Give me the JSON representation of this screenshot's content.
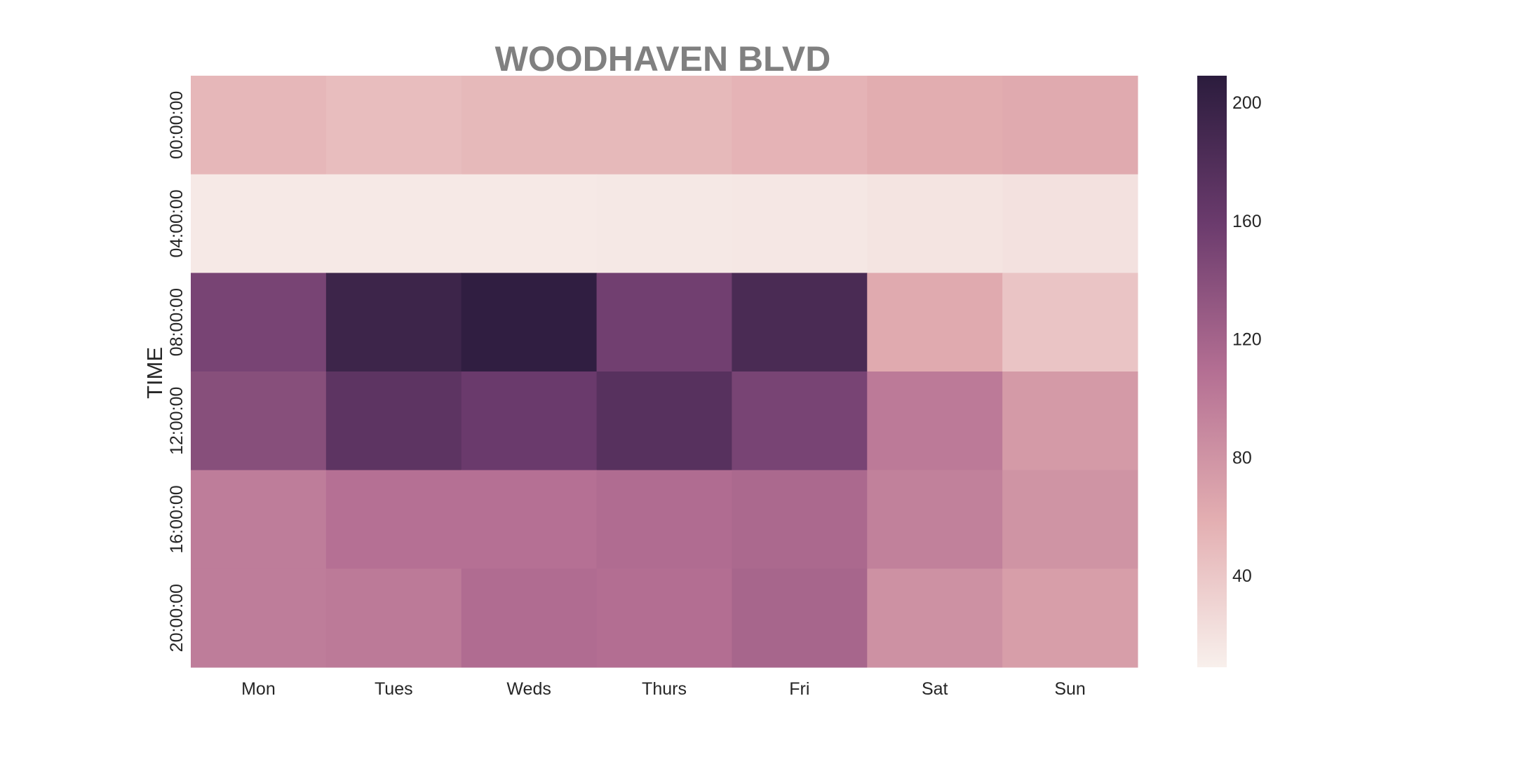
{
  "chart_data": {
    "type": "heatmap",
    "title": "WOODHAVEN BLVD",
    "xlabel": "",
    "ylabel": "TIME",
    "x_categories": [
      "Mon",
      "Tues",
      "Weds",
      "Thurs",
      "Fri",
      "Sat",
      "Sun"
    ],
    "y_categories": [
      "00:00:00",
      "04:00:00",
      "08:00:00",
      "12:00:00",
      "16:00:00",
      "20:00:00"
    ],
    "values": [
      [
        52,
        48,
        51,
        51,
        55,
        60,
        62
      ],
      [
        14,
        14,
        14,
        15,
        16,
        18,
        20
      ],
      [
        150,
        195,
        205,
        155,
        185,
        62,
        42
      ],
      [
        140,
        170,
        160,
        175,
        150,
        100,
        75
      ],
      [
        98,
        108,
        108,
        112,
        115,
        95,
        80
      ],
      [
        98,
        100,
        112,
        110,
        118,
        82,
        72
      ]
    ],
    "colorbar": {
      "min": 9,
      "max": 209,
      "ticks": [
        "40",
        "80",
        "120",
        "160",
        "200"
      ],
      "tick_values": [
        40,
        80,
        120,
        160,
        200
      ],
      "colormap": [
        "#f8f0ec",
        "#e3aeb1",
        "#b46f93",
        "#6b3b6d",
        "#2b1c3d"
      ]
    },
    "grid": false
  }
}
